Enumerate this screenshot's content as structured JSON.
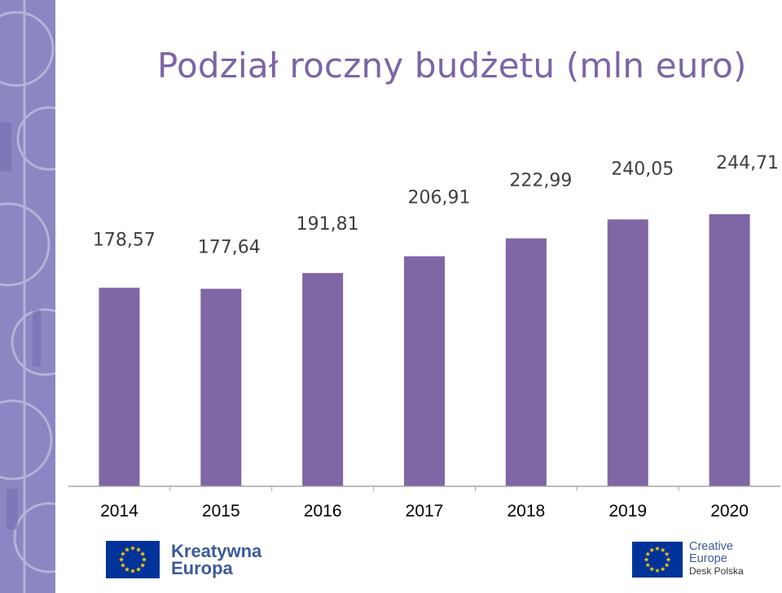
{
  "slide": {
    "title": "Podział roczny budżetu (mln euro)"
  },
  "colors": {
    "bar": "#7f66a5",
    "title": "#7c64a6",
    "side_strip": "#8a87c2",
    "eu_flag": "#003399",
    "eu_star": "#ffcc00",
    "logo_text": "#3c5a9a"
  },
  "chart_data": {
    "type": "bar",
    "categories": [
      "2014",
      "2015",
      "2016",
      "2017",
      "2018",
      "2019",
      "2020"
    ],
    "values": [
      178.57,
      177.64,
      191.81,
      206.91,
      222.99,
      240.05,
      244.71
    ],
    "value_labels": [
      "178,57",
      "177,64",
      "191,81",
      "206,91",
      "222,99",
      "240,05",
      "244,71"
    ],
    "title": "Podział roczny budżetu (mln euro)",
    "xlabel": "",
    "ylabel": "",
    "ylim": [
      0,
      244.71
    ],
    "grid": false,
    "legend": "none"
  },
  "logos": {
    "left": {
      "icon": "eu-flag-icon",
      "line1": "Kreatywna",
      "line2": "Europa"
    },
    "right": {
      "icon": "eu-flag-icon",
      "line1": "Creative",
      "line2": "Europe",
      "line3": "Desk Polska"
    }
  }
}
